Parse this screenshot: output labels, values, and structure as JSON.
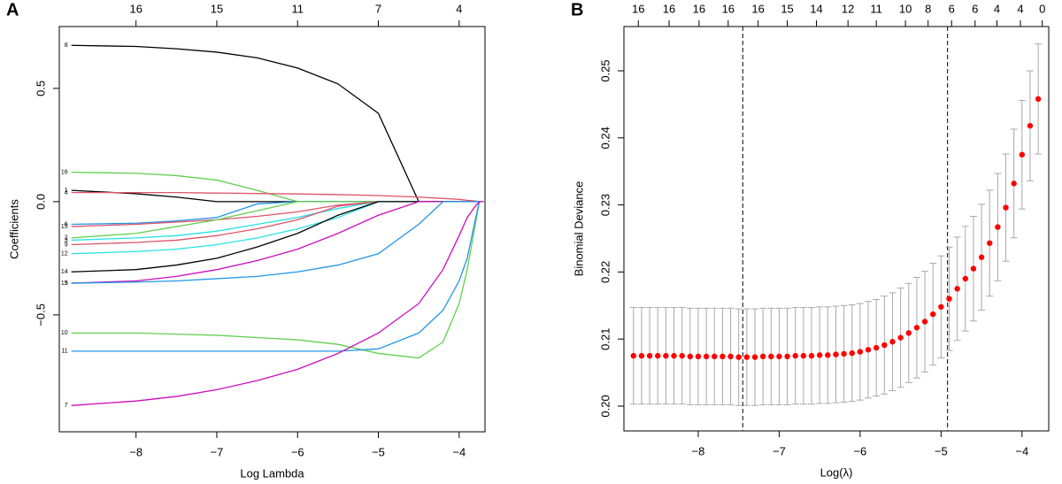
{
  "chart_data": [
    {
      "type": "line",
      "panel": "A",
      "xlabel": "Log Lambda",
      "ylabel": "Coefficients",
      "xlim": [
        -8.95,
        -3.68
      ],
      "ylim": [
        -1.016,
        0.773
      ],
      "xticks": [
        {
          "value": -8,
          "label": "−8"
        },
        {
          "value": -7,
          "label": "−7"
        },
        {
          "value": -6,
          "label": "−6"
        },
        {
          "value": -5,
          "label": "−5"
        },
        {
          "value": -4,
          "label": "−4"
        }
      ],
      "yticks": [
        {
          "value": -0.5,
          "label": "−0.5"
        },
        {
          "value": 0,
          "label": "0.0"
        },
        0.5
      ],
      "top_ticks": [
        {
          "value": -8,
          "label": "16"
        },
        {
          "value": -7,
          "label": "15"
        },
        {
          "value": -6,
          "label": "11"
        },
        {
          "value": -5,
          "label": "7"
        },
        {
          "value": -4,
          "label": "4"
        }
      ],
      "x": [
        -8.8,
        -8,
        -7.5,
        -7,
        -6.5,
        -6,
        -5.5,
        -5,
        -4.5,
        -4.2,
        -4,
        -3.9,
        -3.8,
        -3.75,
        -3.7
      ],
      "series": [
        {
          "name": "8",
          "color": "#000000",
          "values": [
            0.69,
            0.685,
            0.675,
            0.66,
            0.635,
            0.59,
            0.52,
            0.39,
            0,
            0,
            0,
            0,
            0,
            0,
            0
          ]
        },
        {
          "name": "16",
          "color": "#61D04F",
          "values": [
            0.13,
            0.125,
            0.115,
            0.095,
            0.05,
            0,
            0,
            0,
            0,
            0,
            0,
            0,
            0,
            0,
            0
          ]
        },
        {
          "name": "1",
          "color": "#000000",
          "values": [
            0.05,
            0.035,
            0.02,
            0,
            0,
            0,
            0,
            0,
            0,
            0,
            0,
            0,
            0,
            0,
            0
          ]
        },
        {
          "name": "4",
          "color": "#DF536B",
          "values": [
            0.04,
            0.04,
            0.04,
            0.038,
            0.036,
            0.034,
            0.031,
            0.027,
            0.02,
            0.014,
            0.01,
            0.006,
            0.003,
            0,
            0
          ]
        },
        {
          "name": "6",
          "color": "#2297E6",
          "values": [
            -0.1,
            -0.095,
            -0.085,
            -0.07,
            -0.01,
            0,
            0,
            0,
            0,
            0,
            0,
            0,
            0,
            0,
            0
          ]
        },
        {
          "name": "15",
          "color": "#DF536B",
          "values": [
            -0.11,
            -0.1,
            -0.09,
            -0.08,
            -0.065,
            -0.045,
            -0.015,
            0,
            0,
            0,
            0,
            0,
            0,
            0,
            0
          ]
        },
        {
          "name": "2",
          "color": "#61D04F",
          "values": [
            -0.16,
            -0.14,
            -0.11,
            -0.08,
            -0.04,
            0,
            0,
            0,
            0,
            0,
            0,
            0,
            0,
            0,
            0
          ]
        },
        {
          "name": "3",
          "color": "#28E2E5",
          "values": [
            -0.17,
            -0.16,
            -0.15,
            -0.13,
            -0.1,
            -0.07,
            -0.03,
            0,
            0,
            0,
            0,
            0,
            0,
            0,
            0
          ]
        },
        {
          "name": "9",
          "color": "#DF536B",
          "values": [
            -0.19,
            -0.18,
            -0.17,
            -0.15,
            -0.12,
            -0.08,
            -0.02,
            0,
            0,
            0,
            0,
            0,
            0,
            0,
            0
          ]
        },
        {
          "name": "12",
          "color": "#28E2E5",
          "values": [
            -0.23,
            -0.22,
            -0.21,
            -0.19,
            -0.16,
            -0.12,
            -0.07,
            0,
            0,
            0,
            0,
            0,
            0,
            0,
            0
          ]
        },
        {
          "name": "14",
          "color": "#000000",
          "values": [
            -0.31,
            -0.3,
            -0.28,
            -0.25,
            -0.2,
            -0.14,
            -0.06,
            0,
            0,
            0,
            0,
            0,
            0,
            0,
            0
          ]
        },
        {
          "name": "13",
          "color": "#CD0BBC",
          "values": [
            -0.36,
            -0.35,
            -0.33,
            -0.3,
            -0.26,
            -0.21,
            -0.14,
            -0.06,
            0,
            0,
            0,
            0,
            0,
            0,
            0
          ]
        },
        {
          "name": "5",
          "color": "#2297E6",
          "values": [
            -0.36,
            -0.355,
            -0.35,
            -0.34,
            -0.33,
            -0.31,
            -0.28,
            -0.23,
            -0.1,
            0,
            0,
            0,
            0,
            0,
            0
          ]
        },
        {
          "name": "10",
          "color": "#61D04F",
          "values": [
            -0.58,
            -0.58,
            -0.585,
            -0.59,
            -0.6,
            -0.61,
            -0.63,
            -0.67,
            -0.69,
            -0.62,
            -0.45,
            -0.3,
            -0.1,
            0,
            0
          ]
        },
        {
          "name": "11",
          "color": "#2297E6",
          "values": [
            -0.66,
            -0.66,
            -0.66,
            -0.66,
            -0.66,
            -0.66,
            -0.66,
            -0.65,
            -0.58,
            -0.48,
            -0.35,
            -0.25,
            -0.08,
            0,
            0
          ]
        },
        {
          "name": "7",
          "color": "#CD0BBC",
          "values": [
            -0.9,
            -0.88,
            -0.86,
            -0.83,
            -0.79,
            -0.74,
            -0.67,
            -0.58,
            -0.45,
            -0.3,
            -0.15,
            -0.07,
            -0.02,
            0,
            0
          ]
        }
      ]
    },
    {
      "type": "errorbar",
      "panel": "B",
      "xlabel": "Log(λ)",
      "ylabel": "Binomial Deviance",
      "xlim": [
        -8.918,
        -3.67
      ],
      "ylim": [
        0.1963,
        0.2566
      ],
      "xticks": [
        {
          "value": -8,
          "label": "−8"
        },
        {
          "value": -7,
          "label": "−7"
        },
        {
          "value": -6,
          "label": "−6"
        },
        {
          "value": -5,
          "label": "−5"
        },
        {
          "value": -4,
          "label": "−4"
        }
      ],
      "yticks": [
        {
          "value": 0.2,
          "label": "0.20"
        },
        0.21,
        0.22,
        0.23,
        0.24,
        0.25
      ],
      "top_ticks": [
        {
          "value": -8.74,
          "label": "16"
        },
        {
          "value": -8.36,
          "label": "16"
        },
        {
          "value": -7.99,
          "label": "16"
        },
        {
          "value": -7.63,
          "label": "16"
        },
        {
          "value": -7.26,
          "label": "16"
        },
        {
          "value": -6.9,
          "label": "15"
        },
        {
          "value": -6.54,
          "label": "14"
        },
        {
          "value": -6.15,
          "label": "12"
        },
        {
          "value": -5.8,
          "label": "11"
        },
        {
          "value": -5.44,
          "label": "10"
        },
        {
          "value": -5.16,
          "label": "8"
        },
        {
          "value": -4.87,
          "label": "6"
        },
        {
          "value": -4.58,
          "label": "6"
        },
        {
          "value": -4.31,
          "label": "4"
        },
        {
          "value": -4.02,
          "label": "4"
        },
        {
          "value": -3.75,
          "label": "0"
        }
      ],
      "vlines": [
        -7.45,
        -4.92
      ],
      "point_color": "#ff0000",
      "error_color": "#a9a9a9",
      "x": [
        -8.8,
        -8.7,
        -8.6,
        -8.5,
        -8.4,
        -8.3,
        -8.2,
        -8.1,
        -8.0,
        -7.9,
        -7.8,
        -7.7,
        -7.6,
        -7.5,
        -7.4,
        -7.3,
        -7.2,
        -7.1,
        -7.0,
        -6.9,
        -6.8,
        -6.7,
        -6.6,
        -6.5,
        -6.4,
        -6.3,
        -6.2,
        -6.1,
        -6.0,
        -5.9,
        -5.8,
        -5.7,
        -5.6,
        -5.5,
        -5.4,
        -5.3,
        -5.2,
        -5.1,
        -5.0,
        -4.9,
        -4.8,
        -4.7,
        -4.6,
        -4.5,
        -4.4,
        -4.3,
        -4.2,
        -4.1,
        -4.0,
        -3.9,
        -3.8
      ],
      "values": [
        0.2075,
        0.2075,
        0.2075,
        0.2075,
        0.2075,
        0.2075,
        0.2075,
        0.2074,
        0.2074,
        0.2074,
        0.2074,
        0.2074,
        0.2074,
        0.2073,
        0.2073,
        0.2073,
        0.2074,
        0.2074,
        0.2074,
        0.2074,
        0.2075,
        0.2075,
        0.2075,
        0.2076,
        0.2076,
        0.2077,
        0.2078,
        0.2079,
        0.2081,
        0.2084,
        0.2087,
        0.2091,
        0.2096,
        0.2102,
        0.2109,
        0.2117,
        0.2126,
        0.2137,
        0.2148,
        0.216,
        0.2175,
        0.219,
        0.2205,
        0.2222,
        0.2243,
        0.2267,
        0.2296,
        0.2332,
        0.2375,
        0.2418,
        0.2458
      ],
      "errors": [
        0.0072,
        0.0072,
        0.0072,
        0.0072,
        0.0072,
        0.0072,
        0.0072,
        0.0072,
        0.0072,
        0.0072,
        0.0072,
        0.0072,
        0.0072,
        0.0072,
        0.0072,
        0.0072,
        0.0072,
        0.0072,
        0.0072,
        0.0072,
        0.0072,
        0.0072,
        0.0072,
        0.0072,
        0.0072,
        0.0072,
        0.0072,
        0.0072,
        0.0072,
        0.0072,
        0.0072,
        0.0073,
        0.0073,
        0.0074,
        0.0074,
        0.0075,
        0.0075,
        0.0076,
        0.0076,
        0.0077,
        0.0077,
        0.0078,
        0.0078,
        0.0079,
        0.0079,
        0.008,
        0.008,
        0.0081,
        0.0081,
        0.0082,
        0.0082
      ]
    }
  ]
}
